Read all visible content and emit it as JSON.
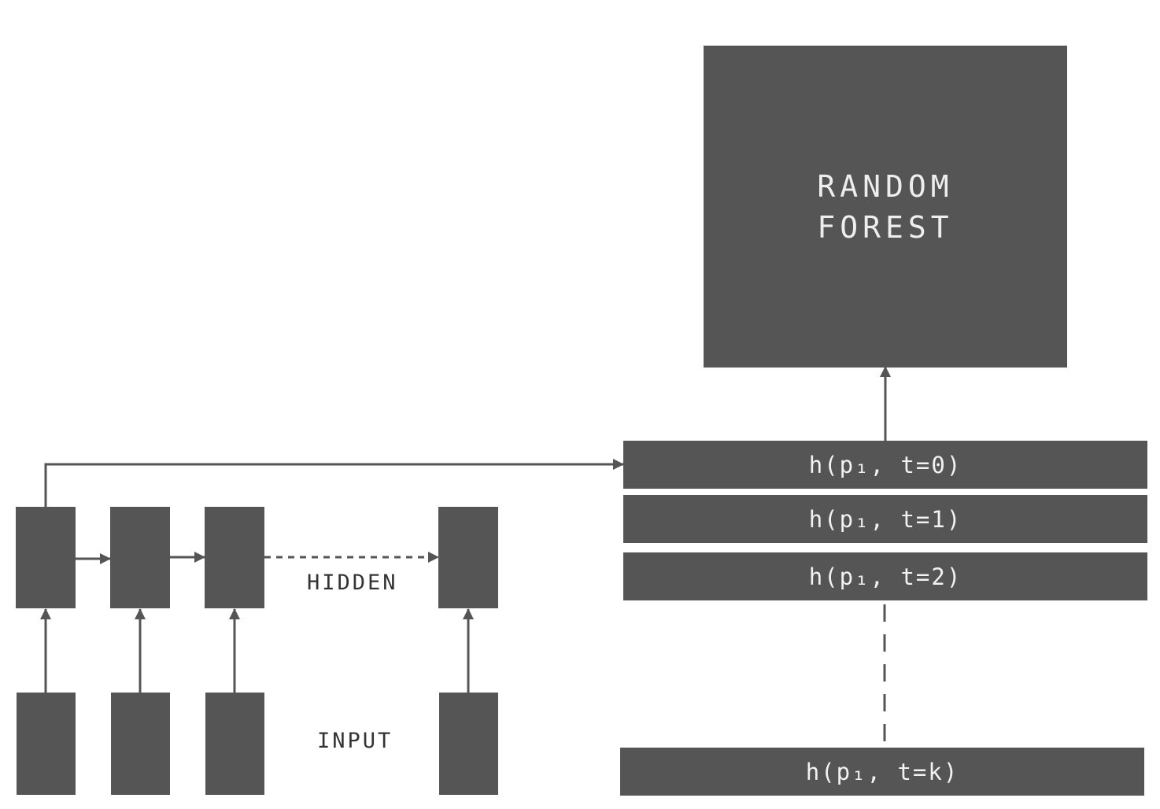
{
  "colors": {
    "box_fill": "#555555",
    "box_text": "#f2f2f2",
    "label_text": "#333333",
    "line": "#555555",
    "background": "#ffffff"
  },
  "random_forest": {
    "line1": "RANDOM",
    "line2": "FOREST"
  },
  "labels": {
    "hidden": "HIDDEN",
    "input": "INPUT"
  },
  "hidden_states": [
    "h(p₁, t=0)",
    "h(p₁, t=1)",
    "h(p₁, t=2)",
    "h(p₁, t=k)"
  ]
}
